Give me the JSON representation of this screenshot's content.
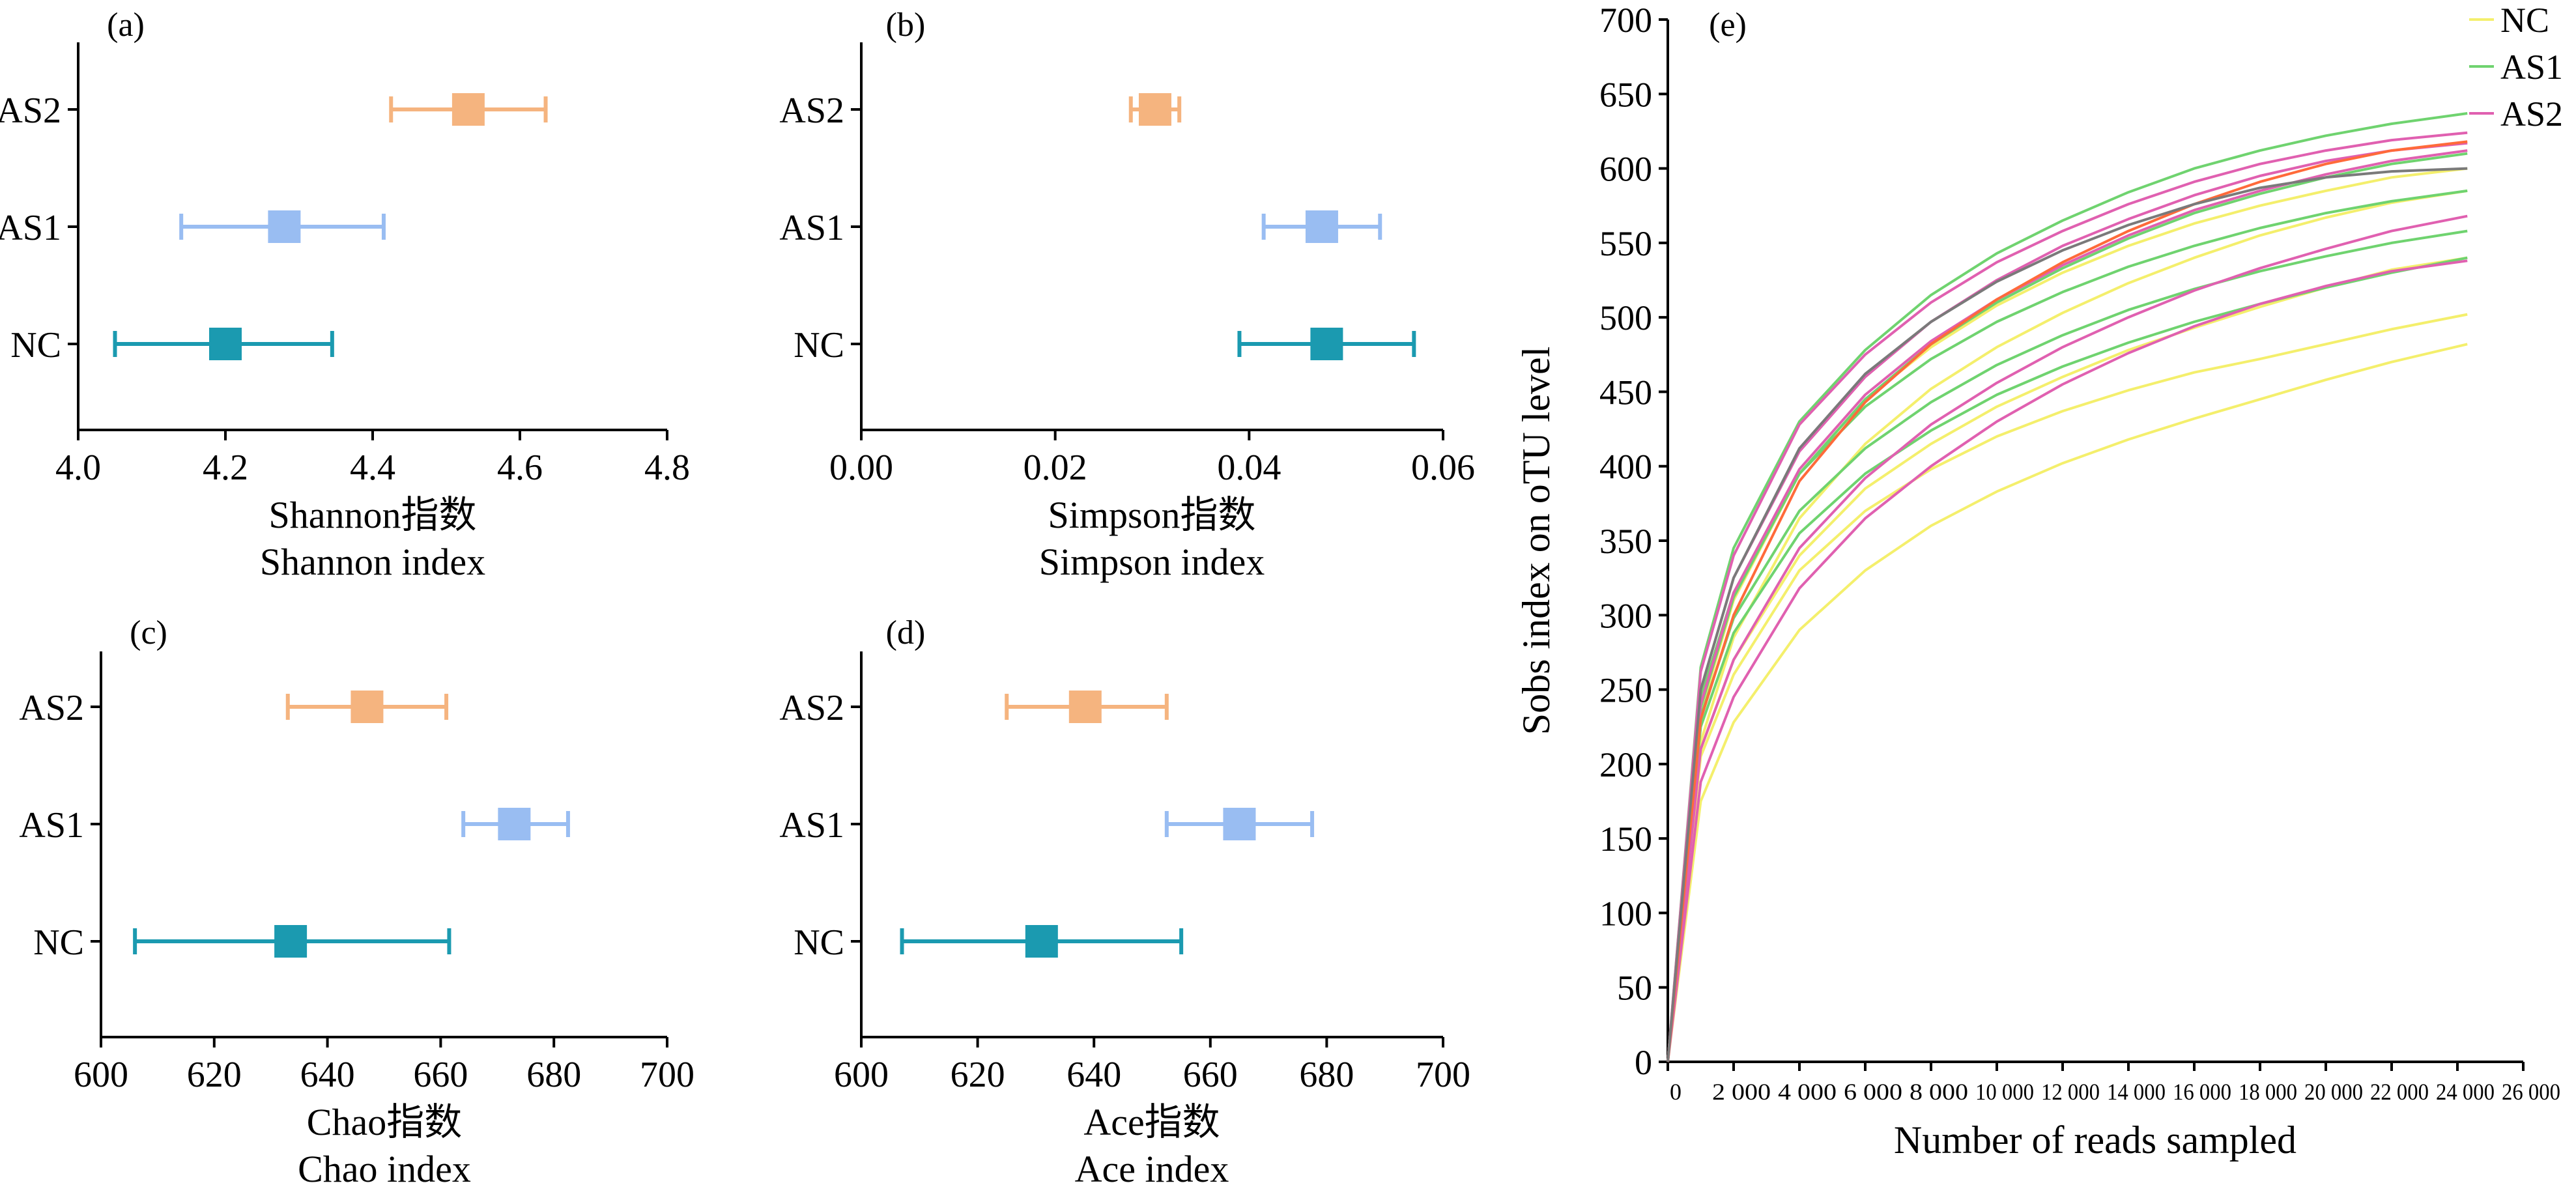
{
  "chart_data": [
    {
      "panel": "(a)",
      "type": "errorbar",
      "xlabel_cn": "Shannon指数",
      "xlabel": "Shannon index",
      "xlim": [
        4.0,
        4.8
      ],
      "xticks": [
        "4.0",
        "4.2",
        "4.4",
        "4.6",
        "4.8"
      ],
      "categories": [
        "AS2",
        "AS1",
        "NC"
      ],
      "points": [
        {
          "group": "AS2",
          "mean": 4.53,
          "low": 4.425,
          "high": 4.635,
          "color": "#f5b47f"
        },
        {
          "group": "AS1",
          "mean": 4.28,
          "low": 4.14,
          "high": 4.415,
          "color": "#99bdf2"
        },
        {
          "group": "NC",
          "mean": 4.2,
          "low": 4.05,
          "high": 4.345,
          "color": "#1b9ab0"
        }
      ]
    },
    {
      "panel": "(b)",
      "type": "errorbar",
      "xlabel_cn": "Simpson指数",
      "xlabel": "Simpson index",
      "xlim": [
        0.0,
        0.06
      ],
      "xticks": [
        "0.00",
        "0.02",
        "0.04",
        "0.06"
      ],
      "categories": [
        "AS2",
        "AS1",
        "NC"
      ],
      "points": [
        {
          "group": "AS2",
          "mean": 0.0303,
          "low": 0.0278,
          "high": 0.0328,
          "color": "#f5b47f"
        },
        {
          "group": "AS1",
          "mean": 0.0475,
          "low": 0.0415,
          "high": 0.0535,
          "color": "#99bdf2"
        },
        {
          "group": "NC",
          "mean": 0.048,
          "low": 0.039,
          "high": 0.057,
          "color": "#1b9ab0"
        }
      ]
    },
    {
      "panel": "(c)",
      "type": "errorbar",
      "xlabel_cn": "Chao指数",
      "xlabel": "Chao index",
      "xlim": [
        600,
        700
      ],
      "xticks": [
        "600",
        "620",
        "640",
        "660",
        "680",
        "700"
      ],
      "categories": [
        "AS2",
        "AS1",
        "NC"
      ],
      "points": [
        {
          "group": "AS2",
          "mean": 647,
          "low": 633,
          "high": 661,
          "color": "#f5b47f"
        },
        {
          "group": "AS1",
          "mean": 673,
          "low": 664,
          "high": 682.5,
          "color": "#99bdf2"
        },
        {
          "group": "NC",
          "mean": 633.5,
          "low": 606,
          "high": 661.5,
          "color": "#1b9ab0"
        }
      ]
    },
    {
      "panel": "(d)",
      "type": "errorbar",
      "xlabel_cn": "Ace指数",
      "xlabel": "Ace index",
      "xlim": [
        600,
        700
      ],
      "xticks": [
        "600",
        "620",
        "640",
        "660",
        "680",
        "700"
      ],
      "categories": [
        "AS2",
        "AS1",
        "NC"
      ],
      "points": [
        {
          "group": "AS2",
          "mean": 638.5,
          "low": 625,
          "high": 652.5,
          "color": "#f5b47f"
        },
        {
          "group": "AS1",
          "mean": 665,
          "low": 652.5,
          "high": 677.5,
          "color": "#99bdf2"
        },
        {
          "group": "NC",
          "mean": 631,
          "low": 607,
          "high": 655,
          "color": "#1b9ab0"
        }
      ]
    },
    {
      "panel": "(e)",
      "type": "line",
      "xlabel": "Number of reads sampled",
      "ylabel": "Sobs index on oTU level",
      "xlim": [
        0,
        26000
      ],
      "ylim": [
        0,
        700
      ],
      "xticks": [
        "0",
        "2 000",
        "4 000",
        "6 000",
        "8 000",
        "10 000",
        "12 000",
        "14 000",
        "16 000",
        "18 000",
        "20 000",
        "22 000",
        "24 000",
        "26 000"
      ],
      "yticks": [
        "0",
        "50",
        "100",
        "150",
        "200",
        "250",
        "300",
        "350",
        "400",
        "450",
        "500",
        "550",
        "600",
        "650",
        "700"
      ],
      "legend_position": "top-right",
      "x": [
        0,
        1000,
        2000,
        4000,
        6000,
        8000,
        10000,
        12000,
        14000,
        16000,
        18000,
        20000,
        22000,
        24300
      ],
      "series": [
        {
          "name": "NC",
          "color": "#f4ef6c",
          "show_in_legend": true,
          "values": [
            0,
            210,
            270,
            340,
            385,
            415,
            440,
            460,
            478,
            493,
            507,
            520,
            532,
            540
          ]
        },
        {
          "name": "",
          "color": "#f4ef6c",
          "show_in_legend": false,
          "values": [
            0,
            205,
            260,
            330,
            370,
            398,
            420,
            437,
            451,
            463,
            472,
            482,
            492,
            502
          ]
        },
        {
          "name": "",
          "color": "#f4ef6c",
          "show_in_legend": false,
          "values": [
            0,
            175,
            228,
            290,
            330,
            360,
            383,
            402,
            418,
            432,
            445,
            458,
            470,
            482
          ]
        },
        {
          "name": "",
          "color": "#f4ef6c",
          "show_in_legend": false,
          "values": [
            0,
            235,
            310,
            395,
            445,
            480,
            508,
            530,
            548,
            563,
            575,
            585,
            594,
            600
          ]
        },
        {
          "name": "",
          "color": "#f4ef6c",
          "show_in_legend": false,
          "values": [
            0,
            215,
            285,
            365,
            415,
            452,
            480,
            503,
            523,
            540,
            555,
            567,
            577,
            585
          ]
        },
        {
          "name": "AS1",
          "color": "#6fd36f",
          "show_in_legend": true,
          "values": [
            0,
            265,
            345,
            430,
            478,
            515,
            543,
            565,
            584,
            600,
            612,
            622,
            630,
            637
          ]
        },
        {
          "name": "",
          "color": "#6fd36f",
          "show_in_legend": false,
          "values": [
            0,
            245,
            315,
            395,
            440,
            472,
            497,
            517,
            534,
            548,
            560,
            570,
            578,
            585
          ]
        },
        {
          "name": "",
          "color": "#6fd36f",
          "show_in_legend": false,
          "values": [
            0,
            232,
            298,
            370,
            412,
            443,
            468,
            488,
            505,
            519,
            531,
            541,
            550,
            558
          ]
        },
        {
          "name": "",
          "color": "#6fd36f",
          "show_in_legend": false,
          "values": [
            0,
            225,
            288,
            355,
            395,
            424,
            448,
            467,
            483,
            497,
            509,
            520,
            530,
            540
          ]
        },
        {
          "name": "",
          "color": "#6fd36f",
          "show_in_legend": false,
          "values": [
            0,
            238,
            312,
            395,
            445,
            482,
            510,
            533,
            553,
            570,
            583,
            594,
            603,
            610
          ]
        },
        {
          "name": "AS2",
          "color": "#e060b0",
          "show_in_legend": true,
          "values": [
            0,
            262,
            340,
            428,
            475,
            510,
            537,
            558,
            576,
            591,
            603,
            612,
            619,
            624
          ]
        },
        {
          "name": "",
          "color": "#e060b0",
          "show_in_legend": false,
          "values": [
            0,
            250,
            325,
            410,
            460,
            497,
            525,
            548,
            566,
            582,
            595,
            605,
            612,
            617
          ]
        },
        {
          "name": "",
          "color": "#e060b0",
          "show_in_legend": false,
          "values": [
            0,
            240,
            315,
            398,
            448,
            484,
            512,
            535,
            555,
            572,
            585,
            596,
            605,
            612
          ]
        },
        {
          "name": "",
          "color": "#e060b0",
          "show_in_legend": false,
          "values": [
            0,
            210,
            270,
            345,
            392,
            428,
            456,
            480,
            500,
            518,
            533,
            546,
            558,
            568
          ]
        },
        {
          "name": "",
          "color": "#e060b0",
          "show_in_legend": false,
          "values": [
            0,
            188,
            245,
            318,
            365,
            400,
            430,
            455,
            476,
            494,
            509,
            521,
            531,
            538
          ]
        },
        {
          "name": "",
          "color": "#ff6a3a",
          "show_in_legend": false,
          "values": [
            0,
            230,
            300,
            390,
            443,
            482,
            512,
            537,
            558,
            576,
            591,
            603,
            612,
            618
          ]
        },
        {
          "name": "",
          "color": "#7a7a7a",
          "show_in_legend": false,
          "values": [
            0,
            250,
            325,
            412,
            462,
            497,
            524,
            545,
            562,
            576,
            587,
            594,
            598,
            600
          ]
        }
      ]
    }
  ]
}
